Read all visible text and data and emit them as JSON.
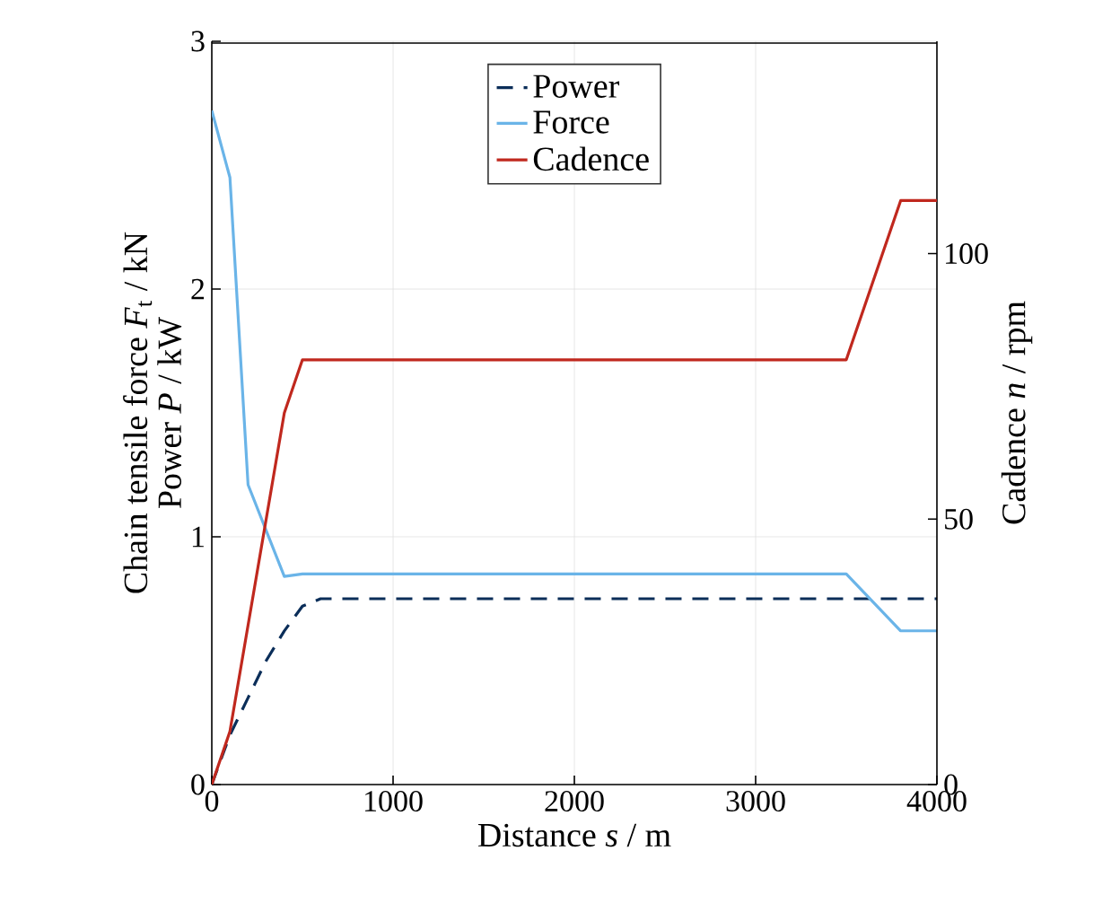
{
  "chart_data": {
    "type": "line",
    "xlabel": "Distance *s* / m",
    "ylabel": "Chain tensile force *F*$_{t}$ / kN",
    "y2label": "Cadence *n* / rpm",
    "annotations": [
      "Power *P* / kW"
    ],
    "xlim": [
      0,
      4000
    ],
    "xticks": [
      0,
      1000,
      2000,
      3000,
      4000
    ],
    "ylim": [
      0,
      3
    ],
    "yticks": [
      0,
      1,
      2,
      3
    ],
    "y2lim": [
      0,
      140
    ],
    "y2ticks": [
      0,
      50,
      100
    ],
    "grid": true,
    "legend": "top",
    "series": [
      {
        "name": "Power",
        "color": "#0b2e59",
        "line_style": "dashed",
        "x": [
          0,
          100,
          200,
          300,
          400,
          500,
          600,
          4000
        ],
        "values": [
          0,
          0.2,
          0.35,
          0.5,
          0.62,
          0.72,
          0.75,
          0.75
        ]
      },
      {
        "name": "Force",
        "color": "#6ab4e8",
        "line_style": "solid",
        "x": [
          0,
          100,
          200,
          400,
          500,
          3500,
          3800,
          4000
        ],
        "values": [
          2.72,
          2.45,
          1.21,
          0.84,
          0.85,
          0.85,
          0.62,
          0.62
        ]
      },
      {
        "name": "Cadence",
        "color": "#c0281e",
        "line_style": "solid",
        "axis": "y2",
        "x": [
          0,
          100,
          400,
          500,
          3500,
          3800,
          4000
        ],
        "values": [
          0,
          10,
          70,
          80,
          80,
          110,
          110
        ]
      }
    ]
  }
}
